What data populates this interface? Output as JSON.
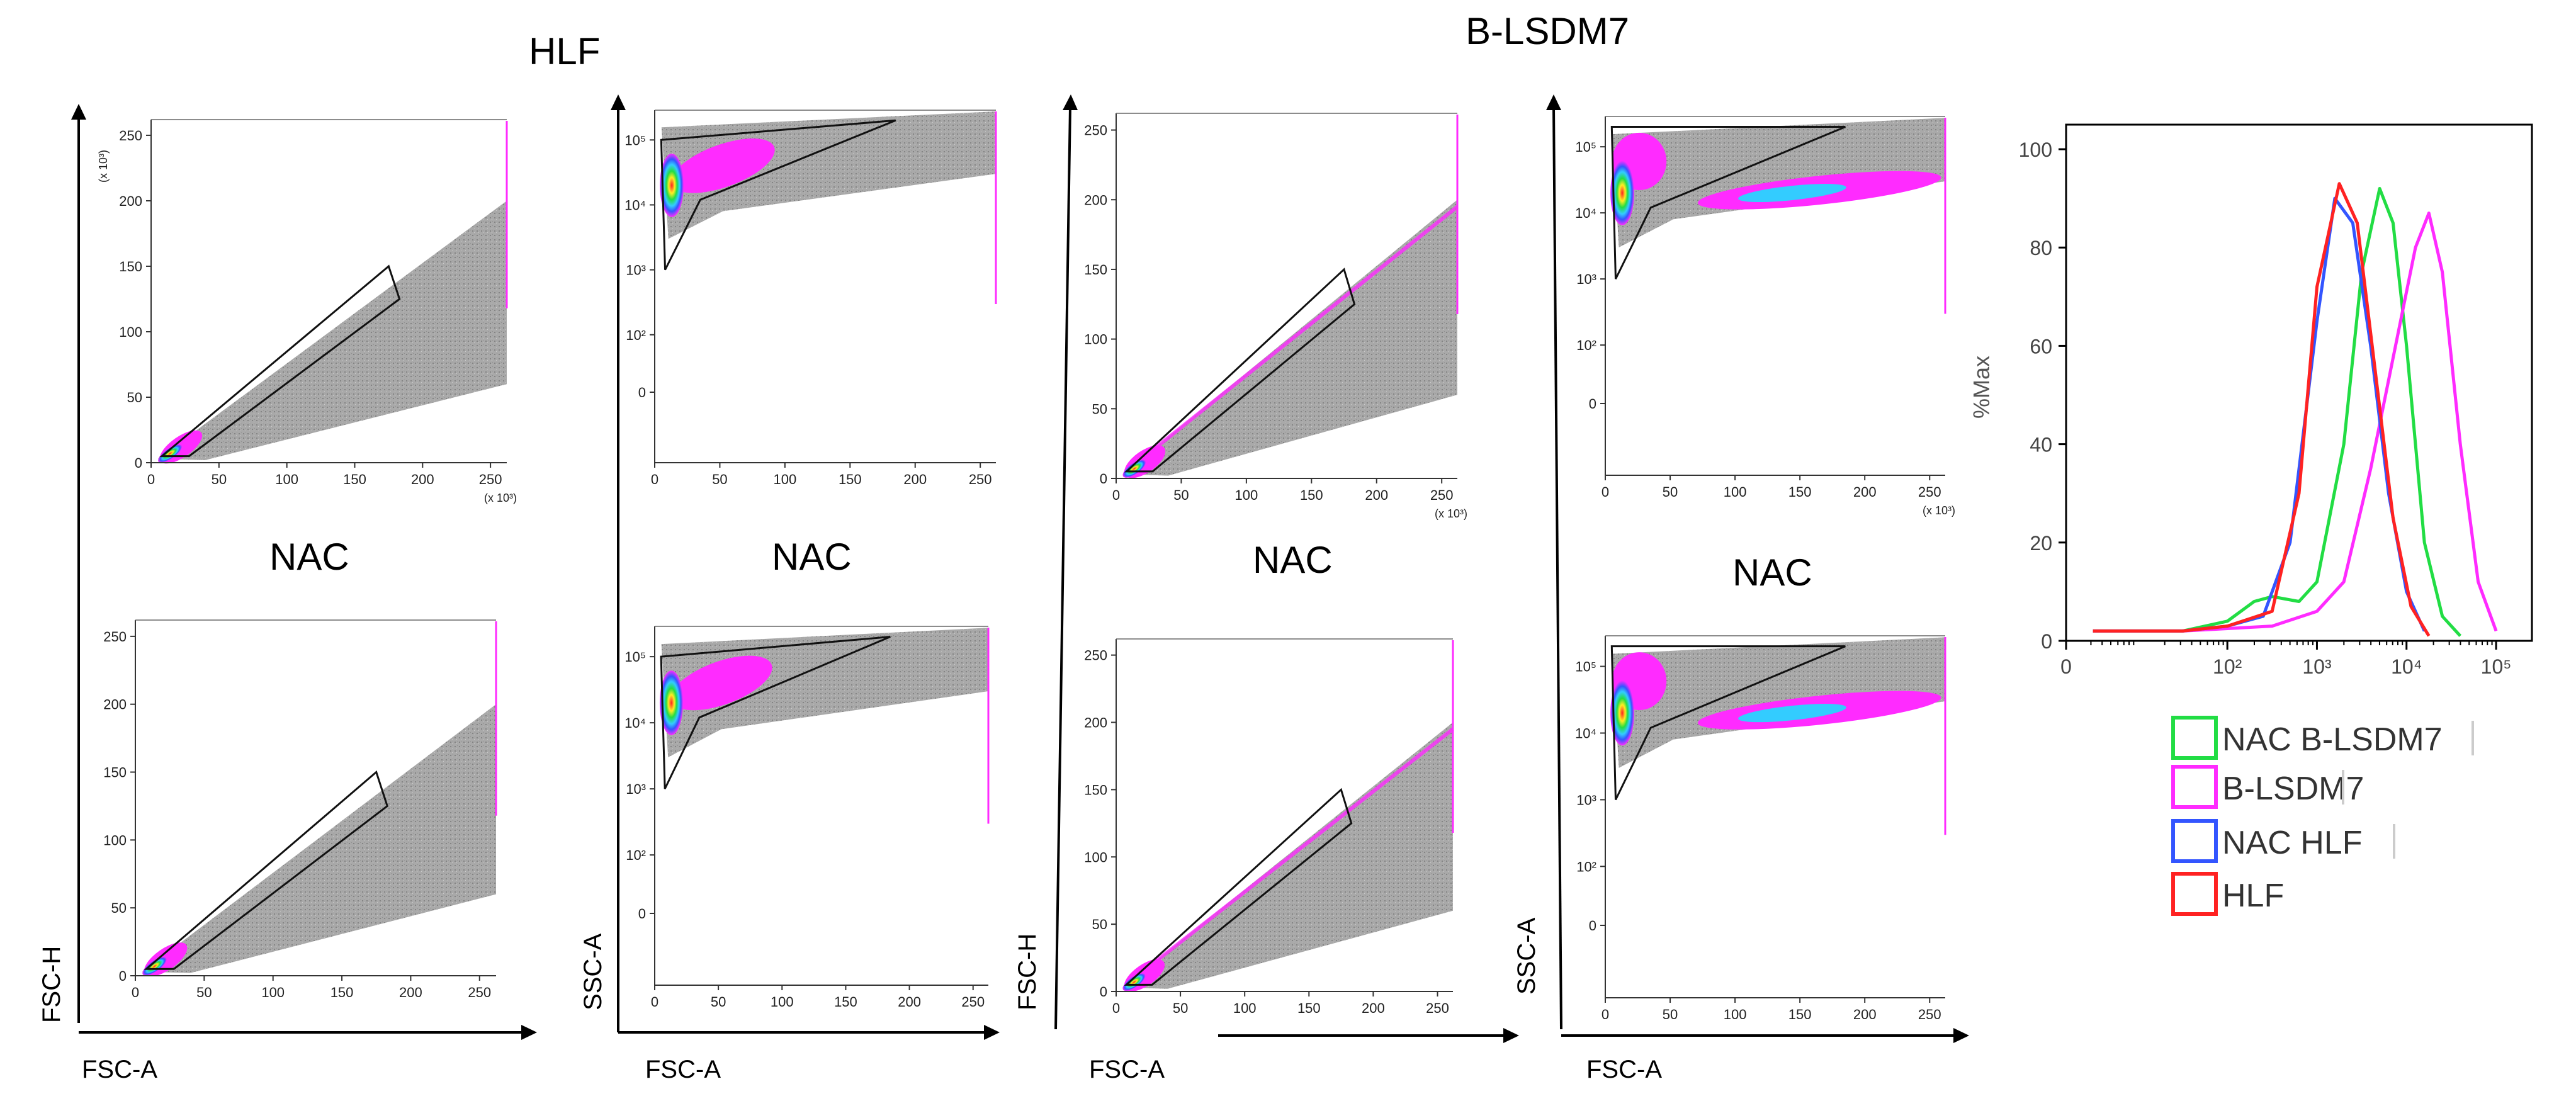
{
  "headers": {
    "hlf": "HLF",
    "blsdm7": "B-LSDM7"
  },
  "nac_labels": [
    "NAC",
    "NAC",
    "NAC",
    "NAC"
  ],
  "axis_labels": {
    "fsc_h_1": "FSC-H",
    "ssc_a_1": "SSC-A",
    "fsc_h_2": "FSC-H",
    "ssc_a_2": "SSC-A",
    "fsc_a_1": "FSC-A",
    "fsc_a_2": "FSC-A",
    "fsc_a_3": "FSC-A",
    "fsc_a_4": "FSC-A"
  },
  "linear_x_ticks": [
    "0",
    "50",
    "100",
    "150",
    "200",
    "250"
  ],
  "linear_y_ticks": [
    "0",
    "50",
    "100",
    "150",
    "200",
    "250"
  ],
  "log_y_ticks": [
    "0",
    "10²",
    "10³",
    "10⁴",
    "10⁵"
  ],
  "scale_note": "(x 10³)",
  "colors": {
    "gray": "#8c8c8c",
    "magenta": "#ff2bff",
    "cyan": "#33ccff",
    "blue": "#3355ff",
    "green": "#22dd44",
    "red": "#ff2222",
    "yellow": "#ffee22"
  },
  "chart_data": [
    {
      "type": "scatter",
      "panel": "HLF FSC-H vs FSC-A",
      "xlabel": "FSC-A",
      "ylabel": "FSC-H",
      "xlim": [
        0,
        262
      ],
      "ylim": [
        0,
        262
      ],
      "gate": [
        [
          8,
          5
        ],
        [
          175,
          150
        ],
        [
          183,
          125
        ],
        [
          28,
          5
        ]
      ]
    },
    {
      "type": "scatter",
      "panel": "NAC HLF FSC-H vs FSC-A",
      "xlabel": "FSC-A",
      "ylabel": "FSC-H",
      "xlim": [
        0,
        262
      ],
      "ylim": [
        0,
        262
      ],
      "gate": [
        [
          8,
          5
        ],
        [
          175,
          150
        ],
        [
          183,
          125
        ],
        [
          28,
          5
        ]
      ]
    },
    {
      "type": "scatter",
      "panel": "HLF SSC-A vs FSC-A",
      "xlabel": "FSC-A",
      "ylabel": "SSC-A",
      "xscale": "linear",
      "yscale": "log",
      "xlim": [
        0,
        262
      ],
      "gate": [
        [
          5,
          "1e5"
        ],
        [
          185,
          "2e5"
        ],
        [
          35,
          "1.2e4"
        ],
        [
          8,
          "1e3"
        ]
      ]
    },
    {
      "type": "scatter",
      "panel": "NAC HLF SSC-A vs FSC-A",
      "xlabel": "FSC-A",
      "ylabel": "SSC-A",
      "xscale": "linear",
      "yscale": "log",
      "xlim": [
        0,
        262
      ],
      "gate": [
        [
          5,
          "1e5"
        ],
        [
          185,
          "2e5"
        ],
        [
          35,
          "1.2e4"
        ],
        [
          8,
          "1e3"
        ]
      ]
    },
    {
      "type": "scatter",
      "panel": "B-LSDM7 FSC-H vs FSC-A",
      "xlabel": "FSC-A",
      "ylabel": "FSC-H",
      "xlim": [
        0,
        262
      ],
      "ylim": [
        0,
        262
      ],
      "gate": [
        [
          8,
          5
        ],
        [
          175,
          150
        ],
        [
          183,
          125
        ],
        [
          28,
          5
        ]
      ]
    },
    {
      "type": "scatter",
      "panel": "NAC B-LSDM7 FSC-H vs FSC-A",
      "xlabel": "FSC-A",
      "ylabel": "FSC-H",
      "xlim": [
        0,
        262
      ],
      "ylim": [
        0,
        262
      ],
      "gate": [
        [
          8,
          5
        ],
        [
          175,
          150
        ],
        [
          183,
          125
        ],
        [
          28,
          5
        ]
      ]
    },
    {
      "type": "scatter",
      "panel": "B-LSDM7 SSC-A vs FSC-A",
      "xlabel": "FSC-A",
      "ylabel": "SSC-A",
      "xscale": "linear",
      "yscale": "log",
      "xlim": [
        0,
        262
      ],
      "gate": [
        [
          5,
          "2e5"
        ],
        [
          185,
          "2e5"
        ],
        [
          35,
          "1.2e4"
        ],
        [
          8,
          "1e3"
        ]
      ]
    },
    {
      "type": "scatter",
      "panel": "NAC B-LSDM7 SSC-A vs FSC-A",
      "xlabel": "FSC-A",
      "ylabel": "SSC-A",
      "xscale": "linear",
      "yscale": "log",
      "xlim": [
        0,
        262
      ],
      "gate": [
        [
          5,
          "2e5"
        ],
        [
          185,
          "2e5"
        ],
        [
          35,
          "1.2e4"
        ],
        [
          8,
          "1e3"
        ]
      ]
    },
    {
      "type": "line",
      "panel": "histogram",
      "xlabel": "",
      "ylabel": "%Max",
      "xscale": "log",
      "ylim": [
        0,
        105
      ],
      "ytick_labels": [
        "0",
        "20",
        "40",
        "60",
        "80",
        "100"
      ],
      "xtick_labels": [
        "0",
        "10²",
        "10³",
        "10⁴",
        "10⁵"
      ],
      "series": [
        {
          "name": "NAC B-LSDM7",
          "color": "#22dd44",
          "points": [
            [
              0.5,
              2
            ],
            [
              1.5,
              2
            ],
            [
              2,
              4
            ],
            [
              2.3,
              8
            ],
            [
              2.5,
              9
            ],
            [
              2.8,
              8
            ],
            [
              3,
              12
            ],
            [
              3.3,
              40
            ],
            [
              3.5,
              75
            ],
            [
              3.7,
              92
            ],
            [
              3.85,
              85
            ],
            [
              4,
              60
            ],
            [
              4.2,
              20
            ],
            [
              4.4,
              5
            ],
            [
              4.6,
              1
            ]
          ]
        },
        {
          "name": "B-LSDM7",
          "color": "#ff2bff",
          "points": [
            [
              0.5,
              2
            ],
            [
              1.5,
              2
            ],
            [
              2.5,
              3
            ],
            [
              3,
              6
            ],
            [
              3.3,
              12
            ],
            [
              3.6,
              35
            ],
            [
              3.9,
              62
            ],
            [
              4.1,
              80
            ],
            [
              4.25,
              87
            ],
            [
              4.4,
              75
            ],
            [
              4.6,
              40
            ],
            [
              4.8,
              12
            ],
            [
              5,
              2
            ]
          ]
        },
        {
          "name": "NAC HLF",
          "color": "#3355ff",
          "points": [
            [
              0.5,
              2
            ],
            [
              1.5,
              2
            ],
            [
              2,
              3
            ],
            [
              2.4,
              5
            ],
            [
              2.7,
              20
            ],
            [
              3,
              65
            ],
            [
              3.2,
              90
            ],
            [
              3.4,
              85
            ],
            [
              3.6,
              60
            ],
            [
              3.8,
              30
            ],
            [
              4,
              10
            ],
            [
              4.2,
              2
            ]
          ]
        },
        {
          "name": "HLF",
          "color": "#ff2222",
          "points": [
            [
              0.5,
              2
            ],
            [
              1.5,
              2
            ],
            [
              2,
              3
            ],
            [
              2.5,
              6
            ],
            [
              2.8,
              30
            ],
            [
              3,
              72
            ],
            [
              3.25,
              93
            ],
            [
              3.45,
              85
            ],
            [
              3.65,
              55
            ],
            [
              3.85,
              25
            ],
            [
              4.05,
              7
            ],
            [
              4.25,
              1
            ]
          ]
        }
      ],
      "legend": [
        "NAC B-LSDM7",
        "B-LSDM7",
        "NAC HLF",
        "HLF"
      ]
    }
  ]
}
